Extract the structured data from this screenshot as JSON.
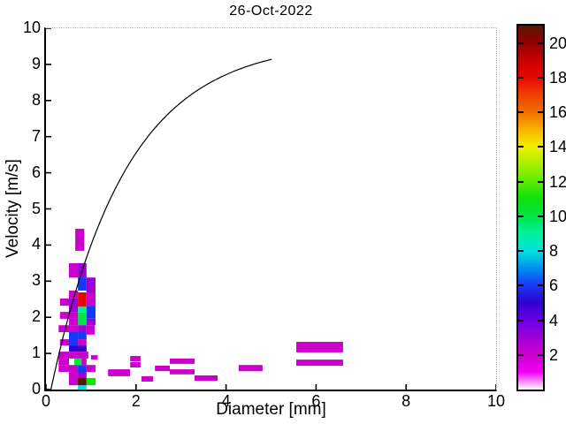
{
  "title": "26-Oct-2022",
  "figure": {
    "background": "#ffffff",
    "curve_color": "#000000",
    "axis_color": "#000000"
  },
  "axes": {
    "xlabel": "Diameter [mm]",
    "ylabel": "Velocity [m/s]",
    "xlim": [
      0,
      10
    ],
    "ylim": [
      0,
      10
    ],
    "xticks": [
      0,
      2,
      4,
      6,
      8,
      10
    ],
    "yticks": [
      0,
      1,
      2,
      3,
      4,
      5,
      6,
      7,
      8,
      9,
      10
    ]
  },
  "colorbar": {
    "range": [
      0,
      21
    ],
    "ticks": [
      2,
      4,
      6,
      8,
      10,
      12,
      14,
      16,
      18,
      20
    ],
    "stops": [
      [
        0,
        "#ffffff"
      ],
      [
        1,
        "#f000f0"
      ],
      [
        2,
        "#cc00cc"
      ],
      [
        3,
        "#a000d8"
      ],
      [
        4,
        "#6c00e4"
      ],
      [
        5,
        "#3000d0"
      ],
      [
        6,
        "#1838f8"
      ],
      [
        7,
        "#0090f0"
      ],
      [
        8,
        "#00e0e0"
      ],
      [
        9,
        "#00f09c"
      ],
      [
        10,
        "#00e448"
      ],
      [
        11,
        "#10e010"
      ],
      [
        12,
        "#58ec00"
      ],
      [
        13,
        "#a8f000"
      ],
      [
        14,
        "#f0f000"
      ],
      [
        15,
        "#f8b400"
      ],
      [
        16,
        "#f07000"
      ],
      [
        17,
        "#f04000"
      ],
      [
        18,
        "#e80800"
      ],
      [
        19,
        "#c80000"
      ],
      [
        20,
        "#940000"
      ],
      [
        21,
        "#5c1400"
      ]
    ]
  },
  "chart_data": {
    "type": "heatmap",
    "title": "26-Oct-2022",
    "xlabel": "Diameter [mm]",
    "ylabel": "Velocity [m/s]",
    "xlim": [
      0,
      10
    ],
    "ylim": [
      0,
      10
    ],
    "colorbar_range": [
      0,
      21
    ],
    "cells_format": [
      "d_min_mm",
      "d_max_mm",
      "v_min_ms",
      "v_max_ms",
      "count"
    ],
    "cells": [
      [
        0.65,
        0.85,
        3.84,
        4.45,
        2
      ],
      [
        0.51,
        0.71,
        3.1,
        3.5,
        2
      ],
      [
        0.71,
        0.9,
        3.1,
        3.5,
        3
      ],
      [
        0.71,
        0.9,
        2.74,
        3.1,
        6
      ],
      [
        0.9,
        1.1,
        2.69,
        3.1,
        3
      ],
      [
        0.51,
        0.71,
        2.52,
        2.74,
        2
      ],
      [
        0.71,
        0.9,
        2.3,
        2.69,
        18
      ],
      [
        0.9,
        1.1,
        2.32,
        2.69,
        2
      ],
      [
        0.31,
        0.51,
        2.32,
        2.52,
        2
      ],
      [
        0.51,
        0.71,
        2.15,
        2.52,
        3
      ],
      [
        0.71,
        0.9,
        2.13,
        2.3,
        9
      ],
      [
        0.9,
        1.1,
        1.96,
        2.32,
        6
      ],
      [
        0.31,
        0.71,
        1.96,
        2.15,
        2
      ],
      [
        0.71,
        0.9,
        1.78,
        2.13,
        10
      ],
      [
        0.51,
        0.71,
        1.78,
        1.96,
        2
      ],
      [
        0.9,
        1.1,
        1.78,
        1.96,
        3
      ],
      [
        0.28,
        0.71,
        1.59,
        1.78,
        2
      ],
      [
        0.71,
        0.9,
        1.59,
        1.78,
        3
      ],
      [
        0.9,
        1.08,
        1.52,
        1.78,
        2
      ],
      [
        0.51,
        0.71,
        1.22,
        1.59,
        6
      ],
      [
        0.71,
        0.9,
        1.39,
        1.59,
        6
      ],
      [
        0.71,
        0.9,
        1.22,
        1.39,
        2
      ],
      [
        0.31,
        0.51,
        1.22,
        1.39,
        2
      ],
      [
        0.51,
        0.9,
        1.05,
        1.22,
        5
      ],
      [
        0.28,
        0.94,
        0.86,
        1.05,
        2
      ],
      [
        1.0,
        1.15,
        0.83,
        0.95,
        2
      ],
      [
        0.28,
        0.51,
        0.68,
        0.86,
        2
      ],
      [
        0.63,
        0.79,
        0.68,
        0.86,
        10
      ],
      [
        0.79,
        0.9,
        0.68,
        0.86,
        2
      ],
      [
        0.28,
        0.71,
        0.49,
        0.68,
        2
      ],
      [
        0.71,
        0.9,
        0.49,
        0.68,
        6
      ],
      [
        0.9,
        1.1,
        0.49,
        0.68,
        2
      ],
      [
        0.51,
        0.71,
        0.32,
        0.49,
        2
      ],
      [
        0.71,
        0.9,
        0.32,
        0.49,
        3
      ],
      [
        0.51,
        0.71,
        0.12,
        0.32,
        2
      ],
      [
        0.71,
        0.9,
        0.12,
        0.32,
        21
      ],
      [
        0.9,
        1.1,
        0.12,
        0.32,
        11
      ],
      [
        0.71,
        0.9,
        0.0,
        0.12,
        8
      ],
      [
        1.38,
        1.87,
        0.37,
        0.56,
        2
      ],
      [
        1.87,
        2.1,
        0.78,
        0.93,
        2
      ],
      [
        1.87,
        2.1,
        0.61,
        0.76,
        2
      ],
      [
        2.12,
        2.38,
        0.22,
        0.37,
        2
      ],
      [
        2.42,
        2.75,
        0.51,
        0.66,
        2
      ],
      [
        2.75,
        3.3,
        0.71,
        0.86,
        2
      ],
      [
        2.75,
        3.3,
        0.42,
        0.56,
        2
      ],
      [
        3.3,
        3.81,
        0.24,
        0.39,
        2
      ],
      [
        4.28,
        4.81,
        0.51,
        0.68,
        2
      ],
      [
        5.56,
        6.6,
        1.03,
        1.32,
        2
      ],
      [
        5.56,
        6.6,
        0.66,
        0.83,
        2
      ]
    ],
    "curve": {
      "name": "terminal-velocity-curve",
      "formula": "v = 9.65 - 10.3*exp(-0.6*D)",
      "d_range": [
        0.11,
        5.05
      ],
      "end_point": [
        5.05,
        9.2
      ]
    }
  }
}
